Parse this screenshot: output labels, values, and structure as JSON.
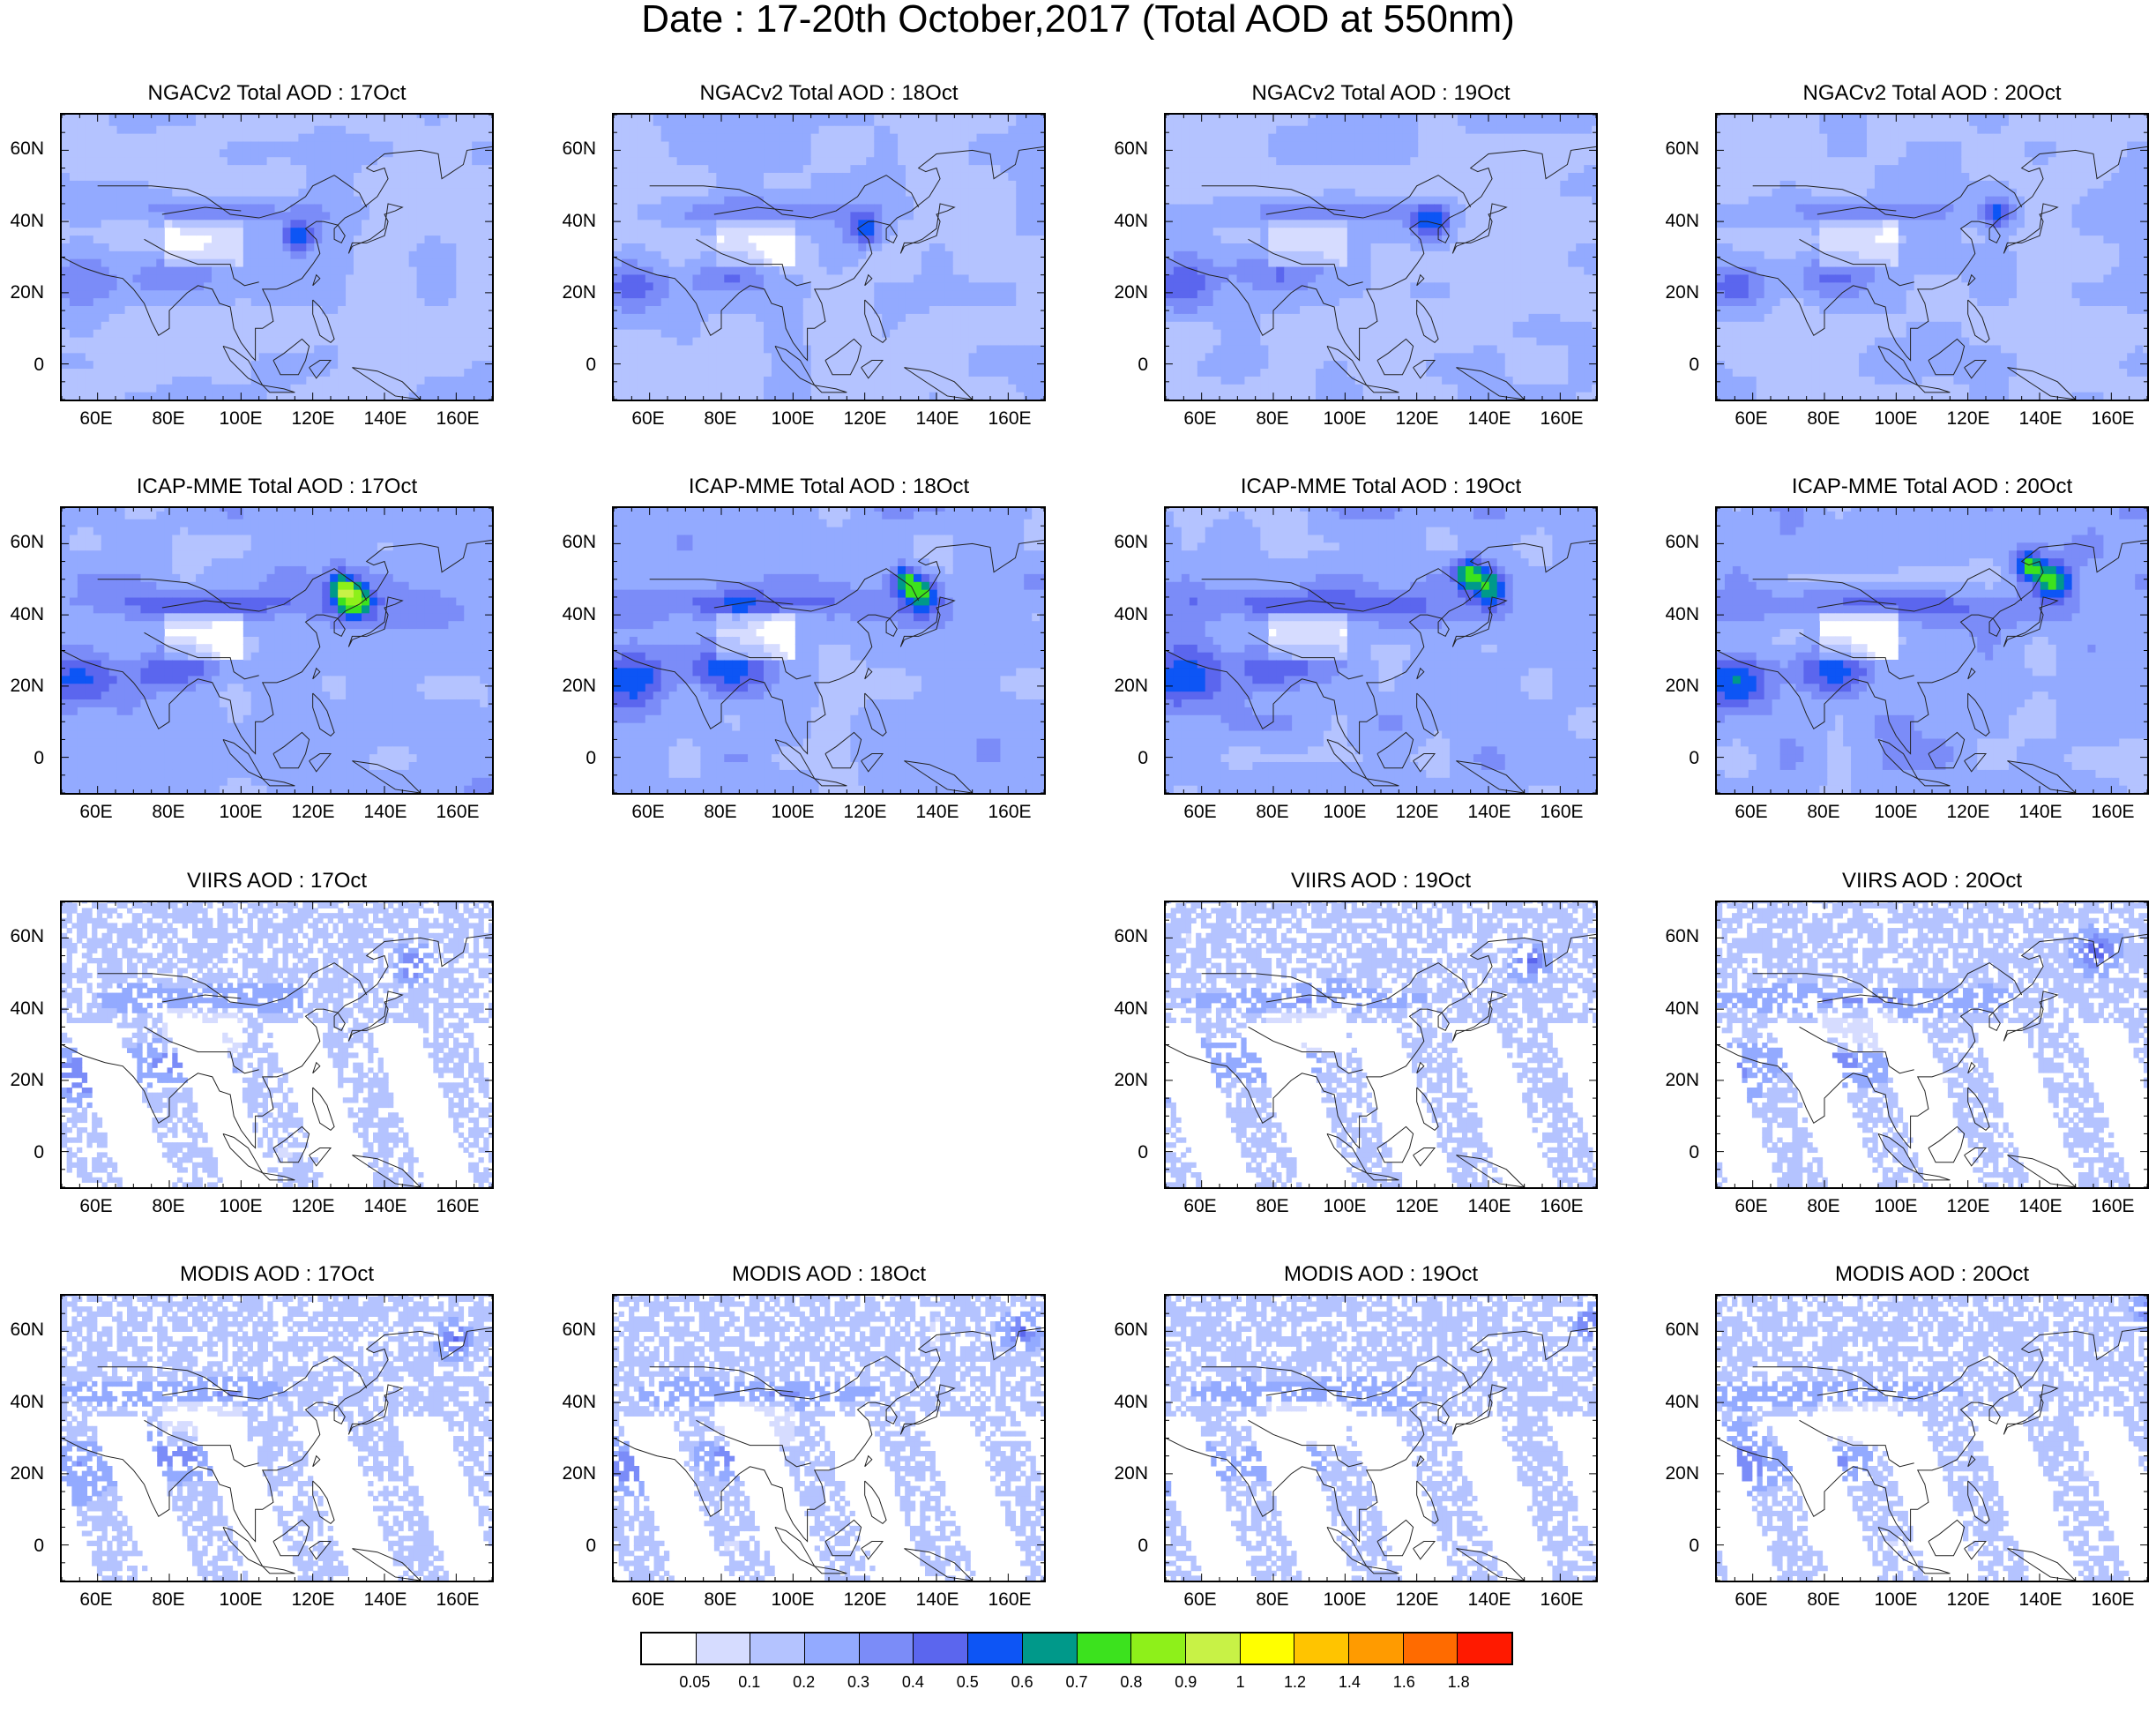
{
  "title": "Date : 17-20th October,2017 (Total AOD at 550nm)",
  "y_axis_labels": [
    "60N",
    "40N",
    "20N",
    "0"
  ],
  "x_axis_labels": [
    "60E",
    "80E",
    "100E",
    "120E",
    "140E",
    "160E"
  ],
  "panels": [
    {
      "title": "NGACv2 Total AOD : 17Oct",
      "row": 0,
      "col": 0,
      "kind": "model-smooth"
    },
    {
      "title": "NGACv2 Total AOD : 18Oct",
      "row": 0,
      "col": 1,
      "kind": "model-smooth"
    },
    {
      "title": "NGACv2 Total AOD : 19Oct",
      "row": 0,
      "col": 2,
      "kind": "model-smooth"
    },
    {
      "title": "NGACv2 Total AOD : 20Oct",
      "row": 0,
      "col": 3,
      "kind": "model-smooth"
    },
    {
      "title": "ICAP-MME Total AOD : 17Oct",
      "row": 1,
      "col": 0,
      "kind": "model-ensemble"
    },
    {
      "title": "ICAP-MME Total AOD : 18Oct",
      "row": 1,
      "col": 1,
      "kind": "model-ensemble"
    },
    {
      "title": "ICAP-MME Total AOD : 19Oct",
      "row": 1,
      "col": 2,
      "kind": "model-ensemble"
    },
    {
      "title": "ICAP-MME Total AOD : 20Oct",
      "row": 1,
      "col": 3,
      "kind": "model-ensemble"
    },
    {
      "title": "VIIRS AOD : 17Oct",
      "row": 2,
      "col": 0,
      "kind": "satellite"
    },
    {
      "title": "VIIRS AOD : 19Oct",
      "row": 2,
      "col": 2,
      "kind": "satellite"
    },
    {
      "title": "VIIRS AOD : 20Oct",
      "row": 2,
      "col": 3,
      "kind": "satellite"
    },
    {
      "title": "MODIS AOD : 17Oct",
      "row": 3,
      "col": 0,
      "kind": "satellite"
    },
    {
      "title": "MODIS AOD : 18Oct",
      "row": 3,
      "col": 1,
      "kind": "satellite"
    },
    {
      "title": "MODIS AOD : 19Oct",
      "row": 3,
      "col": 2,
      "kind": "satellite"
    },
    {
      "title": "MODIS AOD : 20Oct",
      "row": 3,
      "col": 3,
      "kind": "satellite"
    }
  ],
  "colorbar": {
    "colors": [
      "#ffffff",
      "#d6dcff",
      "#b4c3ff",
      "#93aaff",
      "#7b8cf8",
      "#5b66ee",
      "#0d55f5",
      "#00998a",
      "#3ce21e",
      "#8ef01a",
      "#c8f246",
      "#ffff00",
      "#ffc400",
      "#ff9b00",
      "#ff6b00",
      "#ff1a00"
    ],
    "labels": [
      "0.05",
      "0.1",
      "0.2",
      "0.3",
      "0.4",
      "0.5",
      "0.6",
      "0.7",
      "0.8",
      "0.9",
      "1",
      "1.2",
      "1.4",
      "1.6",
      "1.8"
    ]
  }
}
